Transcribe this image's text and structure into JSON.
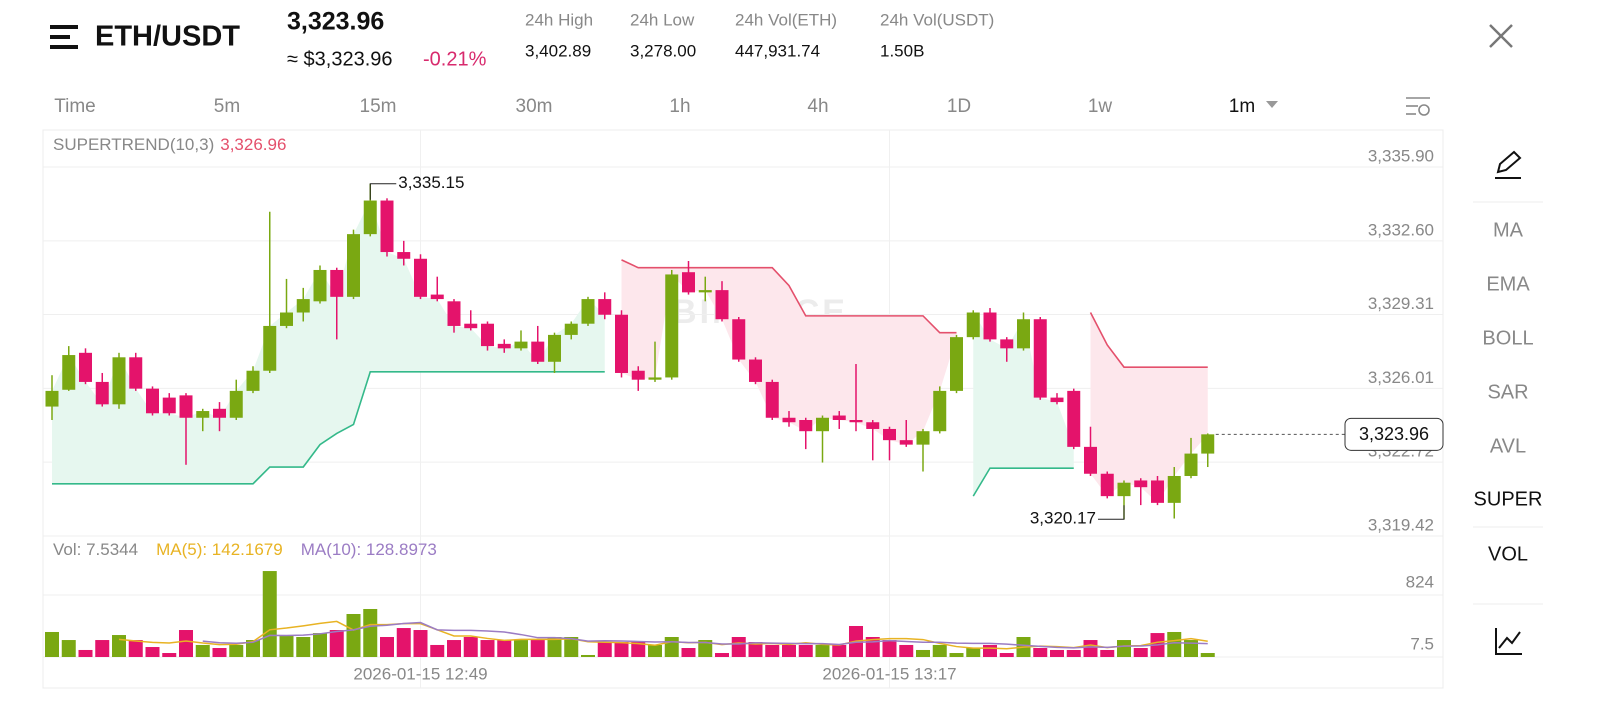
{
  "header": {
    "pair": "ETH/USDT",
    "price": "3,323.96",
    "price_usd": "≈ $3,323.96",
    "change": "-0.21%",
    "stats": [
      {
        "label": "24h High",
        "value": "3,402.89"
      },
      {
        "label": "24h Low",
        "value": "3,278.00"
      },
      {
        "label": "24h Vol(ETH)",
        "value": "447,931.74"
      },
      {
        "label": "24h Vol(USDT)",
        "value": "1.50B"
      }
    ]
  },
  "intervals": [
    "Time",
    "5m",
    "15m",
    "30m",
    "1h",
    "4h",
    "1D",
    "1w",
    "1m"
  ],
  "indicators_menu": [
    "MA",
    "EMA",
    "BOLL",
    "SAR",
    "AVL",
    "SUPER",
    "VOL"
  ],
  "watermark": "BINANCE",
  "chart_data": {
    "type": "candlestick",
    "up_color": "#7aa812",
    "down_color": "#e4136b",
    "categories": [
      null,
      null,
      null,
      null,
      null,
      null,
      null,
      null,
      null,
      null,
      null,
      null,
      null,
      null,
      null,
      null,
      null,
      null,
      null,
      null,
      null,
      null,
      "2026-01-15 12:49",
      null,
      null,
      null,
      null,
      null,
      null,
      null,
      null,
      null,
      null,
      null,
      null,
      null,
      null,
      null,
      null,
      null,
      null,
      null,
      null,
      null,
      null,
      null,
      null,
      null,
      null,
      null,
      "2026-01-15 13:17",
      null,
      null,
      null,
      null,
      null,
      null,
      null,
      null,
      null,
      null,
      null,
      null,
      null,
      null,
      null,
      null,
      null,
      null,
      null
    ],
    "open": [
      3325.2,
      3325.95,
      3327.6,
      3326.3,
      3325.3,
      3327.4,
      3326.0,
      3325.6,
      3325.7,
      3324.7,
      3325.1,
      3324.7,
      3325.9,
      3326.8,
      3328.8,
      3329.4,
      3329.9,
      3331.3,
      3330.1,
      3332.9,
      3334.4,
      3332.1,
      3331.8,
      3330.2,
      3329.9,
      3328.9,
      3328.9,
      3328.0,
      3327.8,
      3328.1,
      3327.2,
      3328.4,
      3328.9,
      3330.0,
      3329.3,
      3326.8,
      3326.4,
      3326.5,
      3331.2,
      3330.3,
      3330.4,
      3329.1,
      3327.3,
      3326.3,
      3324.7,
      3324.6,
      3324.1,
      3324.8,
      3324.6,
      3324.5,
      3324.2,
      3323.7,
      3323.5,
      3324.1,
      3325.9,
      3328.3,
      3329.4,
      3328.2,
      3327.8,
      3329.1,
      3325.6,
      3325.9,
      3323.4,
      3322.2,
      3321.2,
      3321.9,
      3321.9,
      3320.9,
      3322.1,
      3323.1
    ],
    "high": [
      3326.6,
      3327.9,
      3327.8,
      3326.7,
      3327.6,
      3327.6,
      3326.1,
      3325.8,
      3325.8,
      3325.1,
      3325.4,
      3326.4,
      3327.0,
      3333.9,
      3330.9,
      3330.5,
      3331.5,
      3331.4,
      3333.1,
      3335.15,
      3334.5,
      3332.6,
      3332.0,
      3331.0,
      3330.0,
      3329.5,
      3329.0,
      3328.2,
      3328.6,
      3328.8,
      3328.5,
      3329.0,
      3330.1,
      3330.3,
      3329.5,
      3327.0,
      3328.1,
      3331.3,
      3331.7,
      3331.0,
      3330.8,
      3329.2,
      3327.4,
      3326.4,
      3325.0,
      3324.7,
      3324.8,
      3325.0,
      3327.1,
      3324.6,
      3324.3,
      3324.6,
      3324.2,
      3326.1,
      3328.4,
      3329.5,
      3329.6,
      3328.3,
      3329.4,
      3329.2,
      3325.8,
      3326.0,
      3324.3,
      3322.3,
      3321.9,
      3322.0,
      3322.1,
      3322.5,
      3323.8,
      3324.0
    ],
    "low": [
      3324.6,
      3325.9,
      3326.2,
      3325.2,
      3325.1,
      3325.9,
      3324.8,
      3324.8,
      3322.6,
      3324.1,
      3324.1,
      3324.6,
      3325.8,
      3326.7,
      3328.7,
      3329.0,
      3329.8,
      3328.2,
      3330.0,
      3332.8,
      3331.9,
      3331.5,
      3330.0,
      3329.9,
      3328.5,
      3328.6,
      3327.7,
      3327.6,
      3327.7,
      3327.1,
      3326.7,
      3328.2,
      3328.8,
      3329.1,
      3326.5,
      3325.9,
      3326.3,
      3326.4,
      3330.2,
      3329.9,
      3329.0,
      3327.2,
      3326.2,
      3324.6,
      3324.3,
      3323.3,
      3322.7,
      3324.2,
      3324.1,
      3322.8,
      3322.8,
      3323.4,
      3322.3,
      3324.0,
      3325.8,
      3328.2,
      3328.1,
      3327.2,
      3327.7,
      3325.5,
      3325.3,
      3323.3,
      3322.1,
      3321.1,
      3320.17,
      3320.8,
      3320.8,
      3320.2,
      3322.0,
      3322.5
    ],
    "close": [
      3325.9,
      3327.5,
      3326.3,
      3325.3,
      3327.4,
      3326.0,
      3324.9,
      3324.9,
      3324.7,
      3325.0,
      3324.7,
      3325.9,
      3326.8,
      3328.8,
      3329.4,
      3330.0,
      3331.3,
      3330.1,
      3332.9,
      3334.4,
      3332.1,
      3331.8,
      3330.1,
      3330.0,
      3328.8,
      3328.7,
      3327.9,
      3327.8,
      3328.1,
      3327.2,
      3328.4,
      3328.9,
      3330.0,
      3329.3,
      3326.7,
      3326.4,
      3326.5,
      3331.1,
      3330.3,
      3330.4,
      3329.1,
      3327.3,
      3326.3,
      3324.7,
      3324.5,
      3324.1,
      3324.7,
      3324.6,
      3324.5,
      3324.2,
      3323.7,
      3323.5,
      3324.1,
      3325.9,
      3328.3,
      3329.4,
      3328.2,
      3327.8,
      3329.1,
      3325.6,
      3325.4,
      3323.4,
      3322.2,
      3321.2,
      3321.8,
      3321.6,
      3320.9,
      3322.1,
      3323.1,
      3323.96
    ],
    "ylim": [
      3319.42,
      3337.55
    ],
    "yticks": [
      {
        "value": 3335.9,
        "label": "3,335.90"
      },
      {
        "value": 3332.6,
        "label": "3,332.60"
      },
      {
        "value": 3329.31,
        "label": "3,329.31"
      },
      {
        "value": 3326.01,
        "label": "3,326.01"
      },
      {
        "value": 3322.72,
        "label": "3,322.72"
      },
      {
        "value": 3319.42,
        "label": "3,319.42"
      }
    ],
    "grid": true,
    "supertrend": {
      "label": "SUPERTREND(10,3)",
      "value": {
        "value": 3326.96,
        "label": "3,326.96"
      },
      "up_color": "#34b98a",
      "down_color": "#e4506c",
      "up_fill": "#e6f7ef",
      "down_fill": "#fde7ec",
      "up": [
        3321.75,
        3321.75,
        3321.75,
        3321.75,
        3321.75,
        3321.75,
        3321.75,
        3321.75,
        3321.75,
        3321.75,
        3321.75,
        3321.75,
        3321.75,
        3322.5,
        3322.5,
        3322.5,
        3323.5,
        3324.0,
        3324.4,
        3326.75,
        3326.75,
        3326.75,
        3326.75,
        3326.75,
        3326.75,
        3326.75,
        3326.75,
        3326.75,
        3326.75,
        3326.75,
        3326.75,
        3326.75,
        3326.75,
        3326.75,
        null,
        null,
        null,
        null,
        null,
        null,
        null,
        null,
        null,
        null,
        null,
        null,
        null,
        null,
        null,
        null,
        null,
        null,
        null,
        null,
        null,
        3321.2,
        3322.45,
        3322.45,
        3322.45,
        3322.45,
        3322.45,
        3322.45,
        null,
        null,
        null,
        null,
        null,
        null,
        null,
        null
      ],
      "down": [
        null,
        null,
        null,
        null,
        null,
        null,
        null,
        null,
        null,
        null,
        null,
        null,
        null,
        null,
        null,
        null,
        null,
        null,
        null,
        null,
        null,
        null,
        null,
        null,
        null,
        null,
        null,
        null,
        null,
        null,
        null,
        null,
        null,
        null,
        3331.75,
        3331.4,
        3331.4,
        3331.4,
        3331.4,
        3331.4,
        3331.4,
        3331.4,
        3331.4,
        3331.4,
        3330.6,
        3329.25,
        3329.25,
        3329.25,
        3329.25,
        3329.25,
        3329.25,
        3329.25,
        3329.25,
        3328.5,
        3328.5,
        null,
        null,
        null,
        null,
        null,
        null,
        null,
        3329.4,
        3327.95,
        3326.96,
        3326.96,
        3326.96,
        3326.96,
        3326.96,
        3326.96
      ]
    },
    "annotations": {
      "high": {
        "value": 3335.15,
        "label": "3,335.15"
      },
      "low": {
        "value": 3320.17,
        "label": "3,320.17"
      },
      "last": {
        "value": 3323.96,
        "label": "3,323.96"
      }
    },
    "volume": {
      "label": "Vol: 7.5344",
      "ylim": [
        7.5,
        1549
      ],
      "yticks": [
        824,
        7.5
      ],
      "values": [
        337,
        231,
        100,
        231,
        297,
        231,
        139,
        60,
        363,
        166,
        126,
        166,
        231,
        1140,
        284,
        271,
        323,
        363,
        574,
        640,
        271,
        389,
        363,
        166,
        231,
        271,
        231,
        231,
        231,
        231,
        271,
        271,
        34,
        205,
        205,
        205,
        166,
        271,
        126,
        231,
        60,
        271,
        205,
        166,
        166,
        166,
        166,
        166,
        416,
        271,
        231,
        166,
        100,
        166,
        60,
        126,
        166,
        60,
        271,
        126,
        100,
        100,
        231,
        100,
        231,
        126,
        323,
        337,
        231,
        60
      ],
      "series": [
        {
          "name": "MA(5): 142.1679",
          "color": "#e8b323",
          "values": [
            null,
            null,
            null,
            null,
            239,
            218,
            200,
            192,
            218,
            192,
            171,
            176,
            210,
            366,
            389,
            418,
            450,
            476,
            363,
            434,
            434,
            447,
            447,
            366,
            284,
            284,
            252,
            226,
            239,
            239,
            239,
            247,
            208,
            202,
            197,
            184,
            163,
            210,
            195,
            200,
            171,
            192,
            179,
            187,
            174,
            195,
            174,
            166,
            216,
            237,
            250,
            250,
            237,
            187,
            145,
            124,
            124,
            116,
            137,
            150,
            145,
            131,
            166,
            131,
            152,
            158,
            202,
            223,
            250,
            215
          ]
        },
        {
          "name": "MA(10): 128.8973",
          "color": "#9b7cc4",
          "values": [
            null,
            null,
            null,
            null,
            null,
            null,
            null,
            null,
            null,
            216,
            195,
            188,
            201,
            292,
            291,
            295,
            313,
            343,
            365,
            412,
            426,
            449,
            462,
            365,
            359,
            359,
            350,
            337,
            303,
            262,
            262,
            250,
            217,
            221,
            218,
            212,
            205,
            209,
            199,
            199,
            178,
            178,
            195,
            191,
            187,
            183,
            183,
            173,
            202,
            206,
            223,
            212,
            202,
            202,
            191,
            187,
            187,
            177,
            162,
            148,
            135,
            128,
            141,
            134,
            151,
            152,
            167,
            195,
            191,
            184
          ]
        }
      ]
    }
  }
}
